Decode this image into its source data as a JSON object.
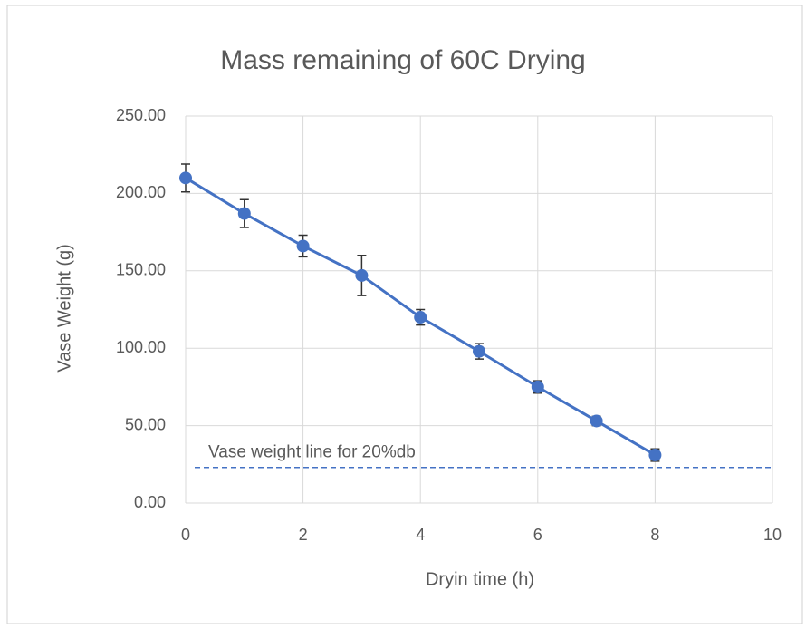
{
  "chart_data": {
    "type": "line",
    "title": "Mass remaining of 60C Drying",
    "x_label": "Dryin time (h)",
    "y_label": "Vase Weight (g)",
    "x": [
      0,
      1,
      2,
      3,
      4,
      5,
      6,
      7,
      8
    ],
    "values": [
      210,
      187,
      166,
      147,
      120,
      98,
      75,
      53,
      31
    ],
    "errors": [
      9,
      9,
      7,
      13,
      5,
      5,
      4,
      3,
      4
    ],
    "color": "#4472c4",
    "xlim": [
      0,
      10
    ],
    "xticks": [
      0,
      2,
      4,
      6,
      8,
      10
    ],
    "ylim": [
      0,
      250
    ],
    "yticks": [
      {
        "value": 0,
        "label": "0.00"
      },
      {
        "value": 50,
        "label": "50.00"
      },
      {
        "value": 100,
        "label": "100.00"
      },
      {
        "value": 150,
        "label": "150.00"
      },
      {
        "value": 200,
        "label": "200.00"
      },
      {
        "value": 250,
        "label": "250.00"
      }
    ],
    "grid": true,
    "reference_line": {
      "value": 23,
      "label": "Vase weight line for 20%db",
      "color": "#4472c4"
    }
  }
}
